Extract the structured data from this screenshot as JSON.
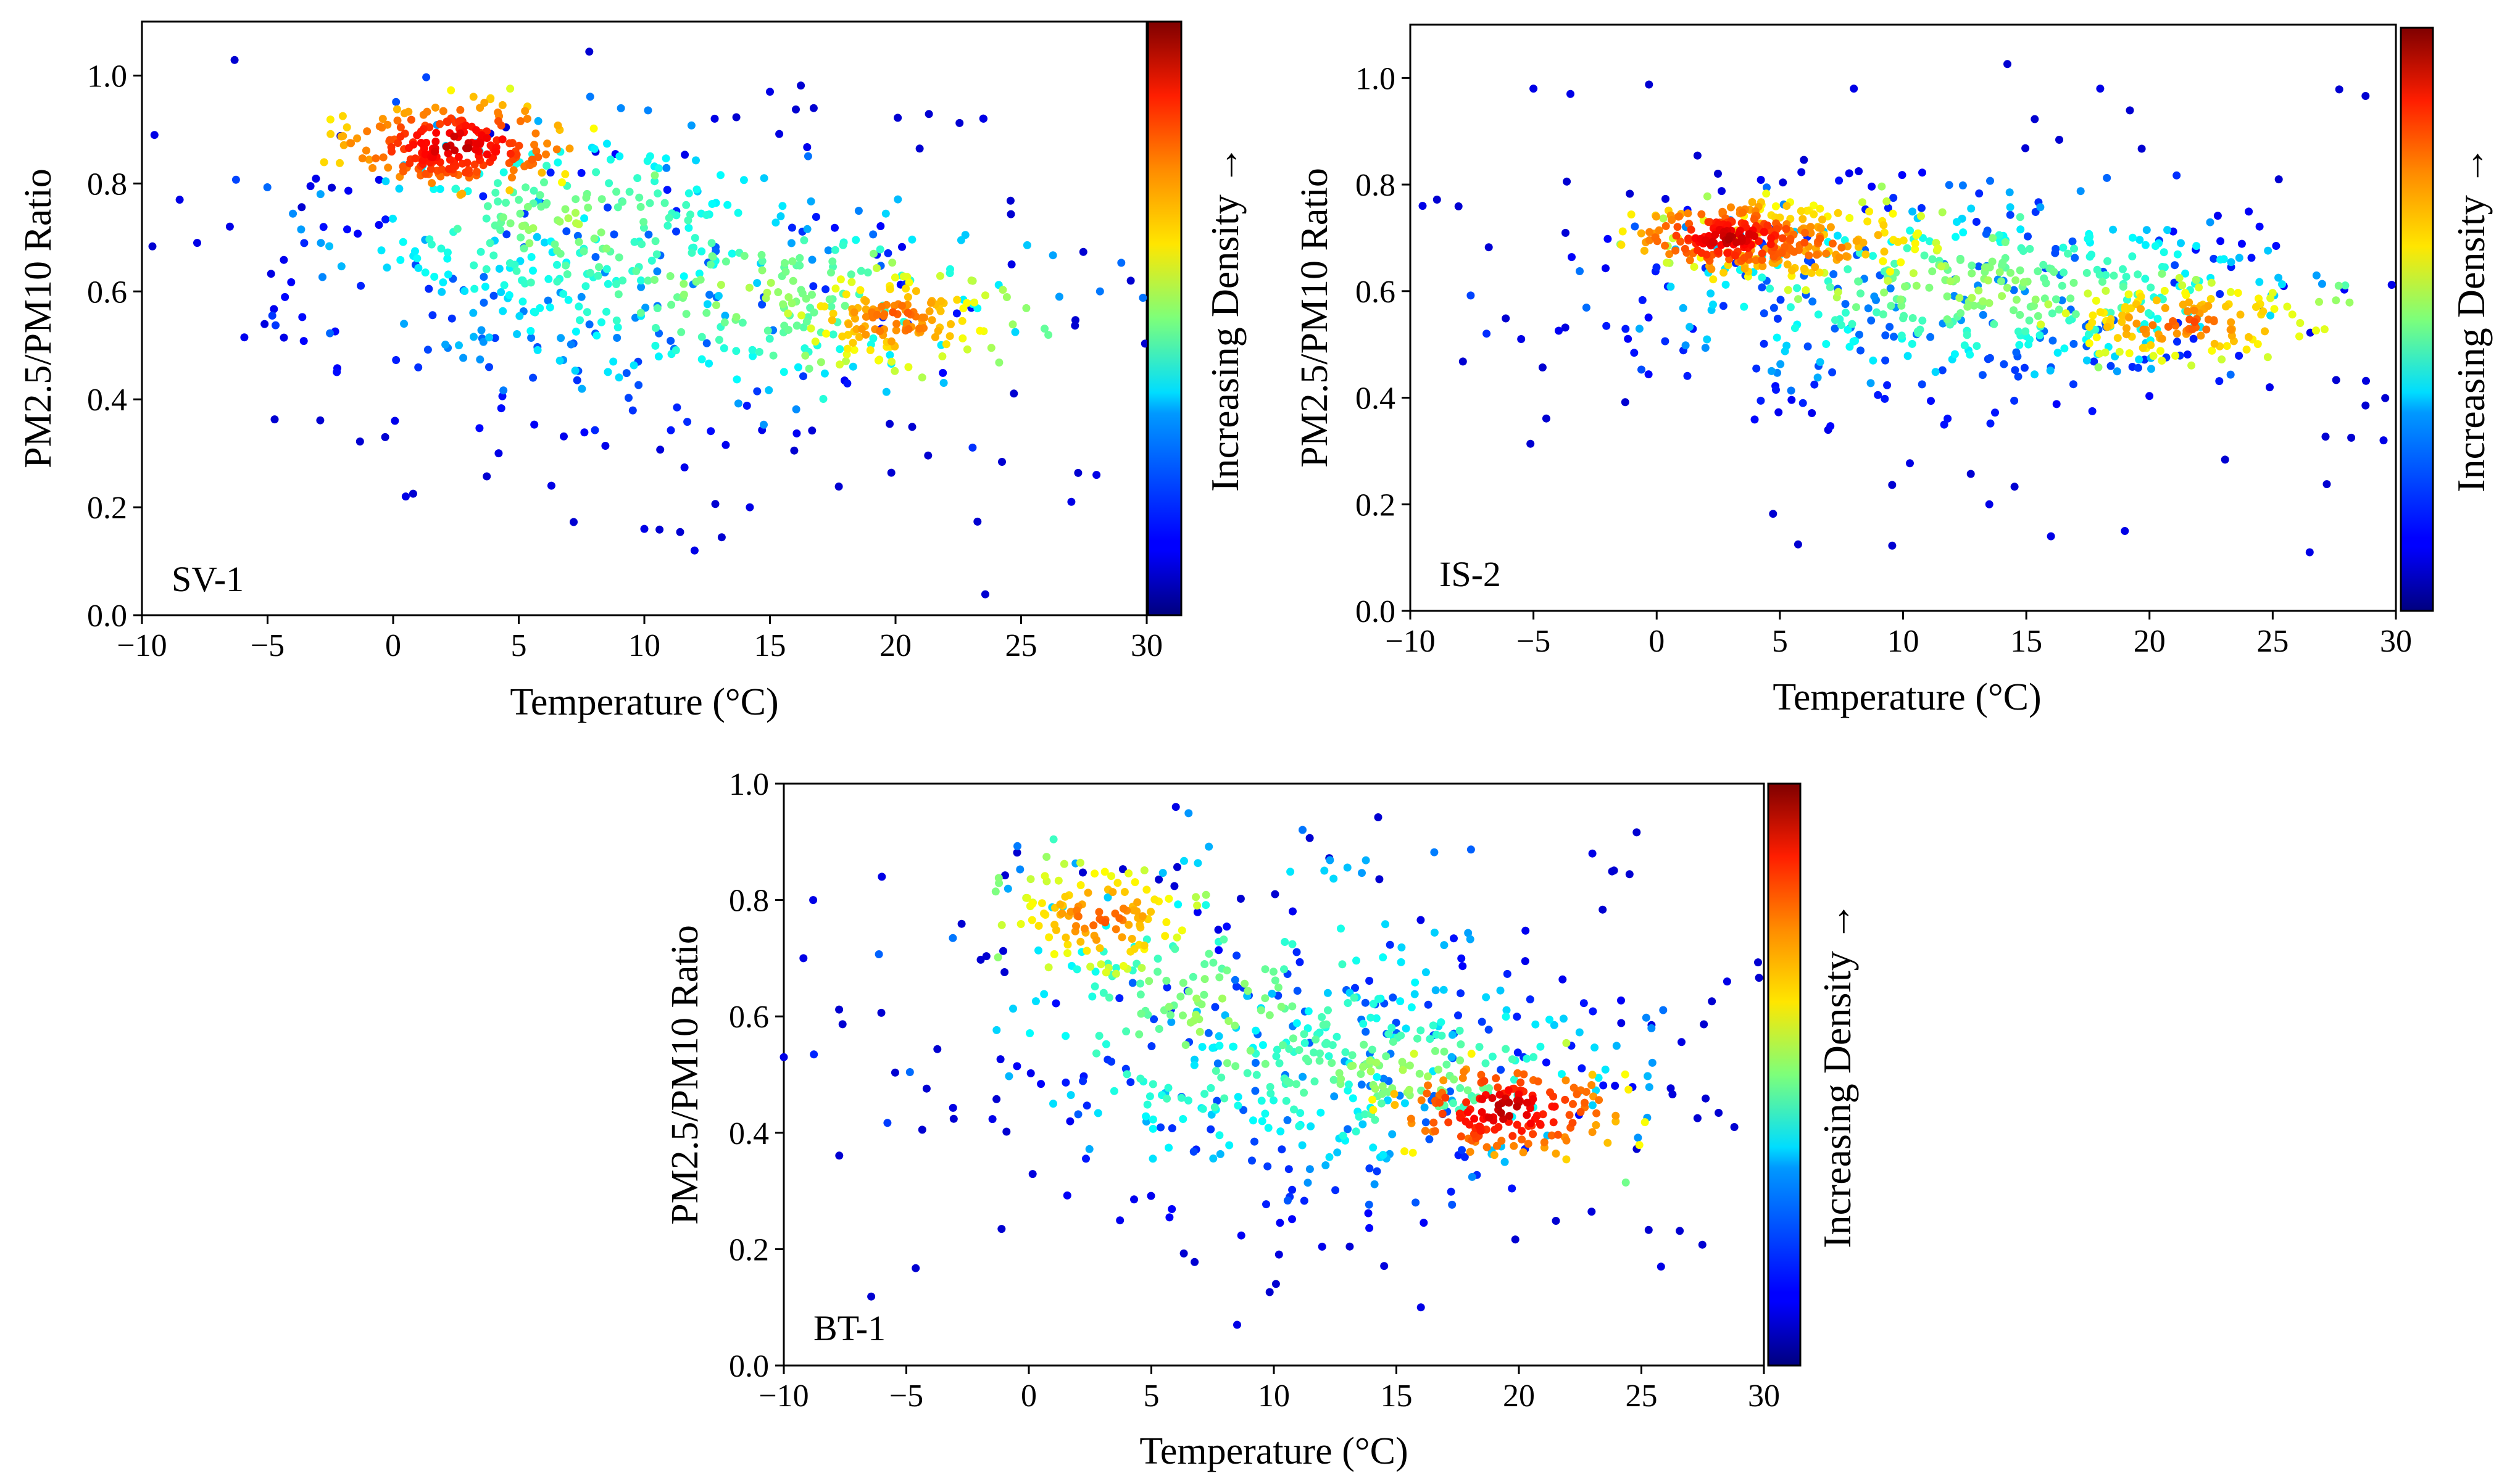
{
  "figure": {
    "colorbar_label": "Increasing Density →",
    "xlabel": "Temperature (°C)",
    "ylabel": "PM2.5/PM10 Ratio"
  },
  "chart_data": [
    {
      "type": "scatter",
      "panel_label": "SV-1",
      "xlabel": "Temperature (°C)",
      "ylabel": "PM2.5/PM10 Ratio",
      "xlim": [
        -10,
        30
      ],
      "ylim": [
        0,
        1.1
      ],
      "xticks": [
        -10,
        -5,
        0,
        5,
        10,
        15,
        20,
        25,
        30
      ],
      "xtick_labels": [
        "−10",
        "−5",
        "0",
        "5",
        "10",
        "15",
        "20",
        "25",
        "30"
      ],
      "yticks": [
        0.0,
        0.2,
        0.4,
        0.6,
        0.8,
        1.0
      ],
      "ytick_labels": [
        "0.0",
        "0.2",
        "0.4",
        "0.6",
        "0.8",
        "1.0"
      ],
      "colorbar_label": "Increasing Density →",
      "colormap": "jet",
      "density_clusters": [
        {
          "x": 2.5,
          "y": 0.87,
          "sx": 2.2,
          "sy": 0.04,
          "n": 220,
          "density": "highest"
        },
        {
          "x": 20.0,
          "y": 0.55,
          "sx": 2.2,
          "sy": 0.05,
          "n": 150,
          "density": "high"
        },
        {
          "x": 7.0,
          "y": 0.72,
          "sx": 4.5,
          "sy": 0.1,
          "n": 230,
          "density": "medium"
        },
        {
          "x": 14.0,
          "y": 0.6,
          "sx": 6.0,
          "sy": 0.1,
          "n": 220,
          "density": "medium"
        },
        {
          "x": 9.0,
          "y": 0.58,
          "sx": 10.0,
          "sy": 0.2,
          "n": 200,
          "density": "low"
        }
      ],
      "outliers": [
        [
          -9.5,
          0.89
        ],
        [
          -8.5,
          0.77
        ],
        [
          -7.8,
          0.69
        ],
        [
          -6.5,
          0.72
        ],
        [
          0.5,
          0.22
        ],
        [
          6.3,
          0.24
        ],
        [
          10.0,
          0.16
        ],
        [
          12.0,
          0.12
        ],
        [
          14.2,
          0.2
        ],
        [
          23.5,
          0.92
        ],
        [
          27.0,
          0.21
        ],
        [
          28.0,
          0.26
        ],
        [
          12.8,
          0.92
        ],
        [
          15.0,
          0.97
        ],
        [
          4.2,
          0.3
        ]
      ]
    },
    {
      "type": "scatter",
      "panel_label": "IS-2",
      "xlabel": "Temperature (°C)",
      "ylabel": "PM2.5/PM10 Ratio",
      "xlim": [
        -10,
        30
      ],
      "ylim": [
        0,
        1.1
      ],
      "xticks": [
        -10,
        -5,
        0,
        5,
        10,
        15,
        20,
        25,
        30
      ],
      "xtick_labels": [
        "−10",
        "−5",
        "0",
        "5",
        "10",
        "15",
        "20",
        "25",
        "30"
      ],
      "yticks": [
        0.0,
        0.2,
        0.4,
        0.6,
        0.8,
        1.0
      ],
      "ytick_labels": [
        "0.0",
        "0.2",
        "0.4",
        "0.6",
        "0.8",
        "1.0"
      ],
      "colorbar_label": "Increasing Density →",
      "colormap": "jet",
      "density_clusters": [
        {
          "x": 3.0,
          "y": 0.7,
          "sx": 1.8,
          "sy": 0.03,
          "n": 200,
          "density": "highest"
        },
        {
          "x": 6.0,
          "y": 0.69,
          "sx": 3.0,
          "sy": 0.05,
          "n": 160,
          "density": "high"
        },
        {
          "x": 21.5,
          "y": 0.54,
          "sx": 3.0,
          "sy": 0.04,
          "n": 140,
          "density": "high"
        },
        {
          "x": 13.0,
          "y": 0.6,
          "sx": 6.5,
          "sy": 0.08,
          "n": 330,
          "density": "medium"
        },
        {
          "x": 12.0,
          "y": 0.58,
          "sx": 11.0,
          "sy": 0.18,
          "n": 260,
          "density": "low"
        }
      ],
      "outliers": [
        [
          -9.5,
          0.76
        ],
        [
          -5.5,
          0.51
        ],
        [
          -5.0,
          0.98
        ],
        [
          -3.5,
          0.97
        ],
        [
          13.5,
          0.2
        ],
        [
          16.0,
          0.14
        ],
        [
          19.0,
          0.15
        ],
        [
          26.5,
          0.11
        ],
        [
          29.5,
          0.32
        ],
        [
          18.0,
          0.98
        ],
        [
          8.0,
          0.98
        ]
      ]
    },
    {
      "type": "scatter",
      "panel_label": "BT-1",
      "xlabel": "Temperature (°C)",
      "ylabel": "PM2.5/PM10 Ratio",
      "xlim": [
        -10,
        30
      ],
      "ylim": [
        0,
        1.0
      ],
      "xticks": [
        -10,
        -5,
        0,
        5,
        10,
        15,
        20,
        25,
        30
      ],
      "xtick_labels": [
        "−10",
        "−5",
        "0",
        "5",
        "10",
        "15",
        "20",
        "25",
        "30"
      ],
      "yticks": [
        0.0,
        0.2,
        0.4,
        0.6,
        0.8,
        1.0
      ],
      "ytick_labels": [
        "0.0",
        "0.2",
        "0.4",
        "0.6",
        "0.8",
        "1.0"
      ],
      "colorbar_label": "Increasing Density →",
      "colormap": "jet",
      "density_clusters": [
        {
          "x": 19.5,
          "y": 0.44,
          "sx": 2.2,
          "sy": 0.04,
          "n": 170,
          "density": "highest"
        },
        {
          "x": 3.0,
          "y": 0.77,
          "sx": 2.0,
          "sy": 0.05,
          "n": 120,
          "density": "high"
        },
        {
          "x": 15.0,
          "y": 0.5,
          "sx": 5.0,
          "sy": 0.08,
          "n": 220,
          "density": "medium"
        },
        {
          "x": 8.0,
          "y": 0.6,
          "sx": 5.0,
          "sy": 0.14,
          "n": 220,
          "density": "medium"
        },
        {
          "x": 12.0,
          "y": 0.5,
          "sx": 9.0,
          "sy": 0.2,
          "n": 230,
          "density": "low"
        }
      ],
      "outliers": [
        [
          -10.0,
          0.53
        ],
        [
          -8.8,
          0.8
        ],
        [
          -9.2,
          0.7
        ],
        [
          6.0,
          0.96
        ],
        [
          8.5,
          0.07
        ],
        [
          16.0,
          0.1
        ],
        [
          28.5,
          0.66
        ],
        [
          -6.0,
          0.84
        ],
        [
          23.0,
          0.88
        ],
        [
          25.8,
          0.17
        ]
      ]
    }
  ]
}
